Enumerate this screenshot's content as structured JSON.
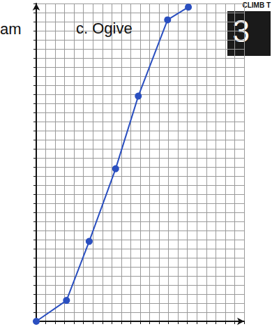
{
  "chart_data": {
    "type": "line",
    "title": "c. Ogive",
    "annotations": [
      "am",
      "CLIMB T",
      "3"
    ],
    "x": [
      0,
      3.2,
      5.6,
      8.4,
      10.8,
      13.9,
      16.1
    ],
    "values": [
      0,
      2.3,
      8.8,
      16.8,
      24.8,
      33.2,
      34.6
    ],
    "color": "#2a4fc0",
    "marker": "circle",
    "xlim": [
      0,
      22
    ],
    "xticks": [
      0,
      1,
      2,
      3,
      4,
      5,
      6,
      7,
      8,
      9,
      10,
      11,
      12,
      13,
      14,
      15,
      16,
      17,
      18,
      19,
      20,
      21,
      22
    ],
    "ylim": [
      0,
      35
    ],
    "yticks": [
      0,
      1,
      2,
      3,
      4,
      5,
      6,
      7,
      8,
      9,
      10,
      11,
      12,
      13,
      14,
      15,
      16,
      17,
      18,
      19,
      20,
      21,
      22,
      23,
      24,
      25,
      26,
      27,
      28,
      29,
      30,
      31,
      32,
      33,
      34,
      35
    ],
    "grid": true,
    "tick_labels": false
  }
}
